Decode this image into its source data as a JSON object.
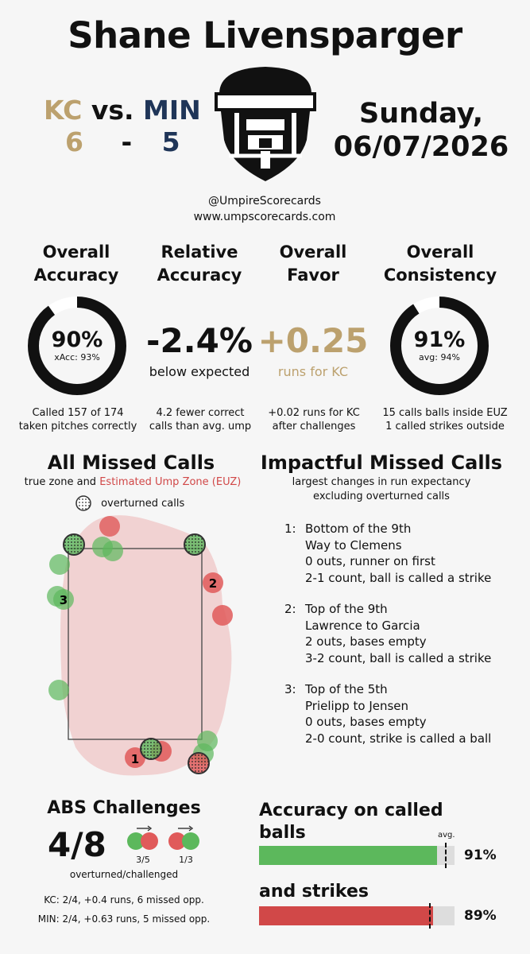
{
  "header": {
    "umpire_name": "Shane Livensparger",
    "away_team": "KC",
    "vs": "vs.",
    "home_team": "MIN",
    "away_score": "6",
    "dash": "-",
    "home_score": "5",
    "day": "Sunday,",
    "date": "06/07/2026",
    "handle": "@UmpireScorecards",
    "website": "www.umpscorecards.com"
  },
  "metrics": {
    "accuracy": {
      "title_line1": "Overall",
      "title_line2": "Accuracy",
      "value": "90%",
      "sub": "xAcc: 93%",
      "fraction": 0.9,
      "note_line1": "Called 157 of 174",
      "note_line2": "taken pitches correctly"
    },
    "relative": {
      "title_line1": "Relative",
      "title_line2": "Accuracy",
      "value": "-2.4%",
      "sub": "below expected",
      "note_line1": "4.2 fewer correct",
      "note_line2": "calls than avg. ump"
    },
    "favor": {
      "title_line1": "Overall",
      "title_line2": "Favor",
      "value": "+0.25",
      "sub": "runs for KC",
      "note_line1": "+0.02 runs for KC",
      "note_line2": "after challenges"
    },
    "consistency": {
      "title_line1": "Overall",
      "title_line2": "Consistency",
      "value": "91%",
      "sub": "avg: 94%",
      "fraction": 0.91,
      "note_line1": "15 calls balls inside EUZ",
      "note_line2": "1 called strikes outside"
    }
  },
  "missed_calls": {
    "title": "All Missed Calls",
    "sub_prefix": "true zone and ",
    "sub_highlight": "Estimated Ump Zone (EUZ)",
    "legend": "overturned calls",
    "labels": [
      "1",
      "2",
      "3"
    ]
  },
  "impactful": {
    "title": "Impactful Missed Calls",
    "sub_line1": "largest changes in run expectancy",
    "sub_line2": "excluding overturned calls",
    "items": [
      {
        "num": "1:",
        "inning": "Bottom of the 9th",
        "matchup": "Way to Clemens",
        "situation": "0 outs, runner on first",
        "count": "2-1 count, ball is called a strike"
      },
      {
        "num": "2:",
        "inning": "Top of the 9th",
        "matchup": "Lawrence to Garcia",
        "situation": "2 outs, bases empty",
        "count": "3-2 count, ball is called a strike"
      },
      {
        "num": "3:",
        "inning": "Top of the 5th",
        "matchup": "Prielipp to Jensen",
        "situation": "0 outs, bases empty",
        "count": "2-0 count, strike is called a ball"
      }
    ]
  },
  "abs": {
    "title": "ABS Challenges",
    "value": "4/8",
    "left_ratio": "3/5",
    "right_ratio": "1/3",
    "caption": "overturned/challenged",
    "kc_line": "KC: 2/4, +0.4 runs, 6 missed opp.",
    "min_line": "MIN: 2/4, +0.63 runs, 5 missed opp."
  },
  "called_accuracy": {
    "balls_title_line1": "Accuracy on called",
    "balls_title_line2": "balls",
    "avg_label": "avg.",
    "balls_pct": "91%",
    "balls_fraction": 0.91,
    "balls_avg_fraction": 0.95,
    "strikes_title": "and strikes",
    "strikes_pct": "89%",
    "strikes_fraction": 0.89,
    "strikes_avg_fraction": 0.87
  },
  "colors": {
    "gold": "#bca16e",
    "navy": "#1f3558",
    "green": "#5cb85c",
    "red": "#d14848"
  }
}
